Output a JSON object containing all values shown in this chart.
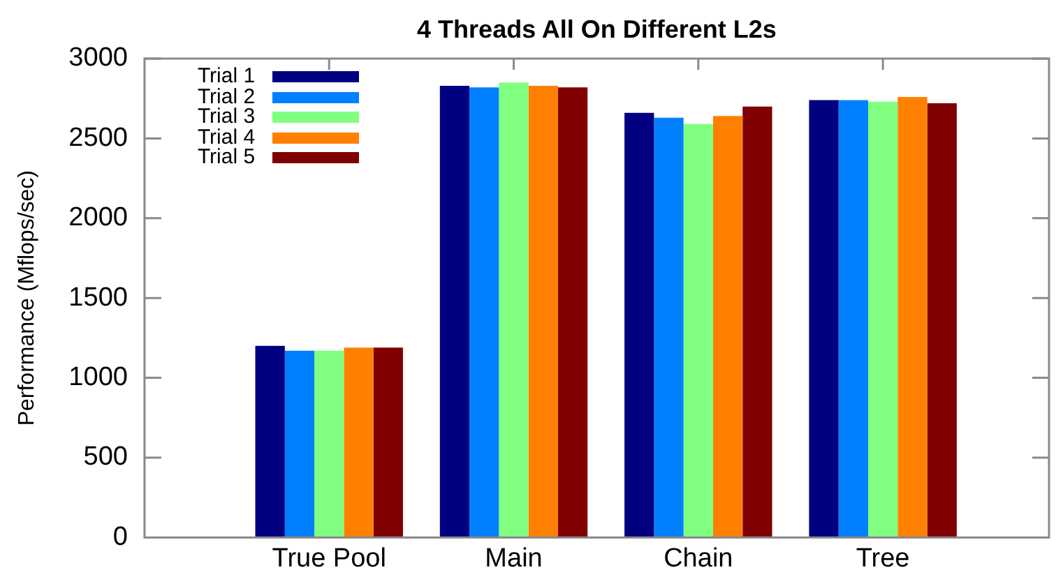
{
  "chart_data": {
    "type": "bar",
    "title": "4 Threads All On Different L2s",
    "ylabel": "Performance (Mflops/sec)",
    "categories": [
      "True Pool",
      "Main",
      "Chain",
      "Tree"
    ],
    "series": [
      {
        "name": "Trial 1",
        "color": "#000080",
        "values": [
          1200,
          2830,
          2660,
          2740
        ]
      },
      {
        "name": "Trial 2",
        "color": "#0080ff",
        "values": [
          1170,
          2820,
          2630,
          2740
        ]
      },
      {
        "name": "Trial 3",
        "color": "#80ff80",
        "values": [
          1170,
          2850,
          2590,
          2730
        ]
      },
      {
        "name": "Trial 4",
        "color": "#ff8000",
        "values": [
          1190,
          2830,
          2640,
          2760
        ]
      },
      {
        "name": "Trial 5",
        "color": "#800000",
        "values": [
          1190,
          2820,
          2700,
          2720
        ]
      }
    ],
    "ylim": [
      0,
      3000
    ],
    "yticks": [
      0,
      500,
      1000,
      1500,
      2000,
      2500,
      3000
    ],
    "legend": "top left"
  }
}
